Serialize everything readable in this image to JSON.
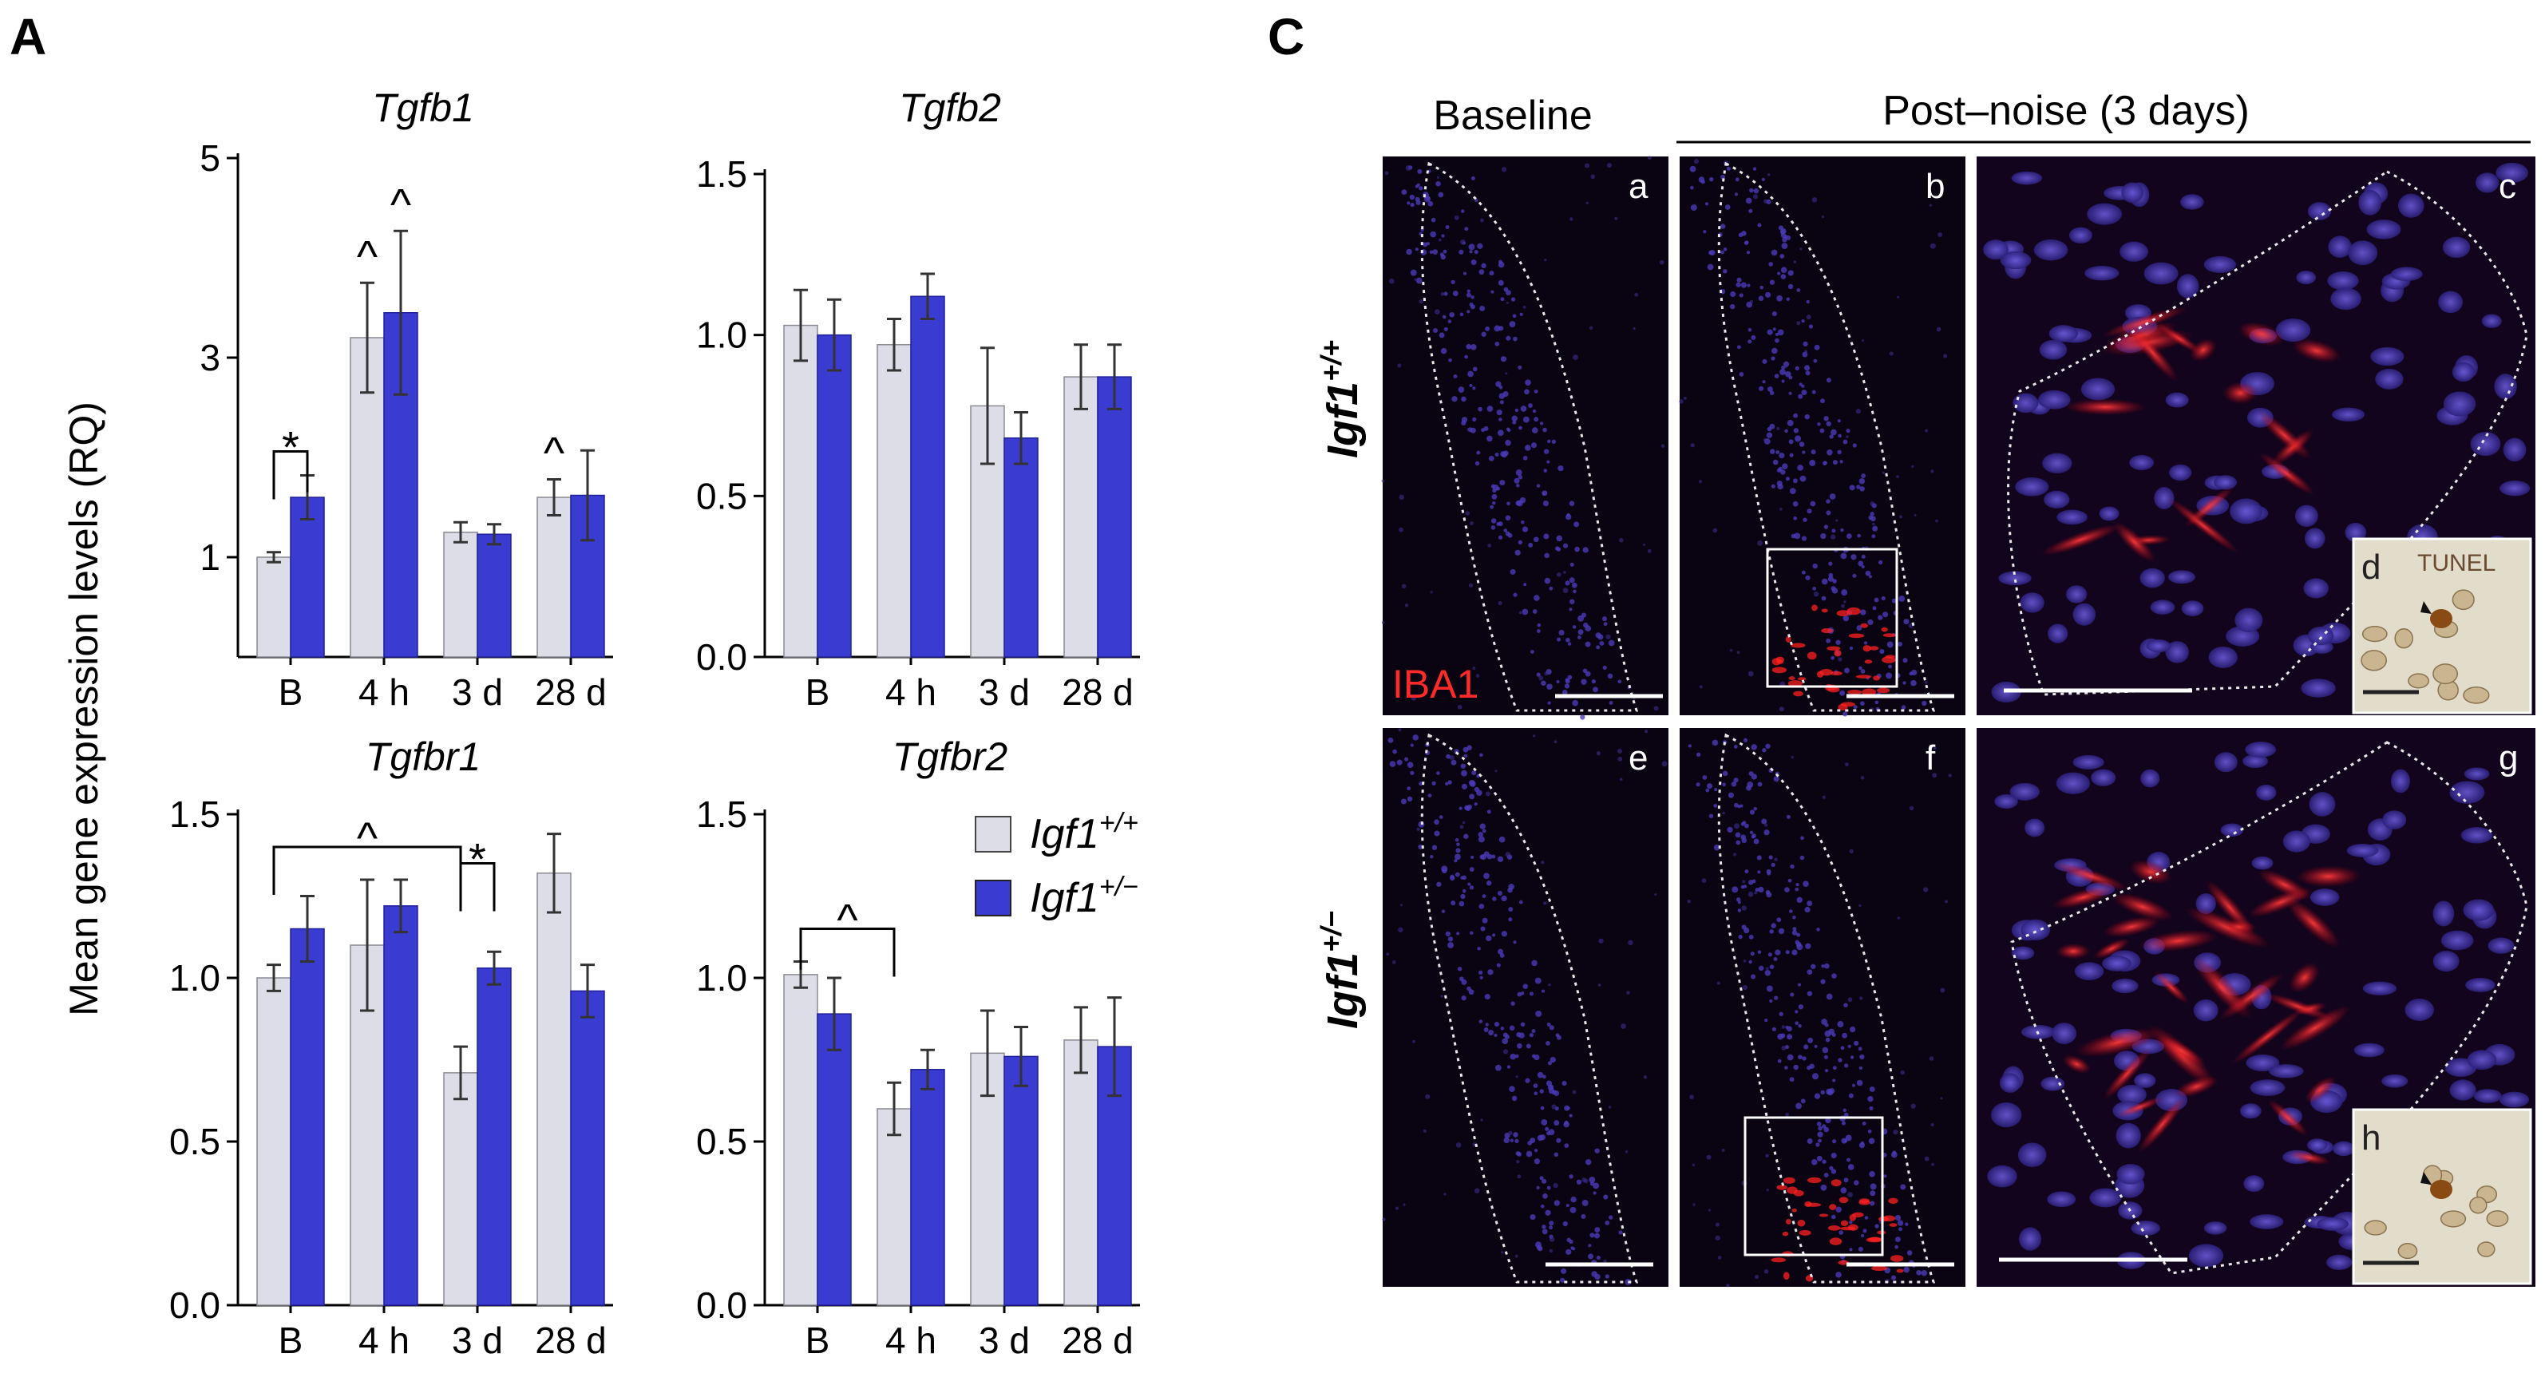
{
  "figure": {
    "panel_a_label": "A",
    "panel_c_label": "C",
    "y_axis_label": "Mean gene expression levels (RQ)"
  },
  "colors": {
    "wt": "#dcdde6",
    "het": "#3a3bd0",
    "error": "#333333",
    "micro_bg": "#0a0312",
    "tunel_bg": "#e2dccb"
  },
  "legend": {
    "items": [
      {
        "label": "Igf1",
        "sup": "+/+",
        "color_key": "wt"
      },
      {
        "label": "Igf1",
        "sup": "+/−",
        "color_key": "het"
      }
    ]
  },
  "chart_data": [
    {
      "type": "bar",
      "title": "Tgfb1",
      "categories": [
        "B",
        "4 h",
        "3 d",
        "28 d"
      ],
      "yticks": [
        "5",
        "3",
        "1"
      ],
      "ytick_values": [
        5,
        3,
        1
      ],
      "ylim": [
        0,
        5
      ],
      "series": [
        {
          "name": "Igf1+/+",
          "values": [
            1.0,
            3.2,
            1.25,
            1.6
          ],
          "errors": [
            0.05,
            0.55,
            0.1,
            0.18
          ]
        },
        {
          "name": "Igf1+/−",
          "values": [
            1.6,
            3.45,
            1.23,
            1.62
          ],
          "errors": [
            0.22,
            0.82,
            0.1,
            0.45
          ]
        }
      ],
      "markers": [
        {
          "text": "*",
          "kind": "bracket",
          "from": [
            0,
            0
          ],
          "to": [
            0,
            1
          ]
        },
        {
          "text": "^",
          "kind": "above",
          "cat": 1,
          "series": 0
        },
        {
          "text": "^",
          "kind": "above",
          "cat": 1,
          "series": 1
        },
        {
          "text": "^",
          "kind": "above",
          "cat": 3,
          "series": 0
        }
      ]
    },
    {
      "type": "bar",
      "title": "Tgfb2",
      "categories": [
        "B",
        "4 h",
        "3 d",
        "28 d"
      ],
      "yticks": [
        "1.5",
        "1.0",
        "0.5",
        "0.0"
      ],
      "ytick_values": [
        1.5,
        1.0,
        0.5,
        0.0
      ],
      "ylim": [
        0,
        1.5
      ],
      "series": [
        {
          "name": "Igf1+/+",
          "values": [
            1.03,
            0.97,
            0.78,
            0.87
          ],
          "errors": [
            0.11,
            0.08,
            0.18,
            0.1
          ]
        },
        {
          "name": "Igf1+/−",
          "values": [
            1.0,
            1.12,
            0.68,
            0.87
          ],
          "errors": [
            0.11,
            0.07,
            0.08,
            0.1
          ]
        }
      ],
      "markers": []
    },
    {
      "type": "bar",
      "title": "Tgfbr1",
      "categories": [
        "B",
        "4 h",
        "3 d",
        "28 d"
      ],
      "yticks": [
        "1.5",
        "1.0",
        "0.5",
        "0.0"
      ],
      "ytick_values": [
        1.5,
        1.0,
        0.5,
        0.0
      ],
      "ylim": [
        0,
        1.5
      ],
      "series": [
        {
          "name": "Igf1+/+",
          "values": [
            1.0,
            1.1,
            0.71,
            1.32
          ],
          "errors": [
            0.04,
            0.2,
            0.08,
            0.12
          ]
        },
        {
          "name": "Igf1+/−",
          "values": [
            1.15,
            1.22,
            1.03,
            0.96
          ],
          "errors": [
            0.1,
            0.08,
            0.05,
            0.08
          ]
        }
      ],
      "markers": [
        {
          "text": "^",
          "kind": "bracket",
          "from": [
            0,
            0
          ],
          "to": [
            2,
            0
          ],
          "y": 1.4
        },
        {
          "text": "*",
          "kind": "bracket",
          "from": [
            2,
            0
          ],
          "to": [
            2,
            1
          ],
          "y": 1.35
        }
      ]
    },
    {
      "type": "bar",
      "title": "Tgfbr2",
      "categories": [
        "B",
        "4 h",
        "3 d",
        "28 d"
      ],
      "yticks": [
        "1.5",
        "1.0",
        "0.5",
        "0.0"
      ],
      "ytick_values": [
        1.5,
        1.0,
        0.5,
        0.0
      ],
      "ylim": [
        0,
        1.5
      ],
      "series": [
        {
          "name": "Igf1+/+",
          "values": [
            1.01,
            0.6,
            0.77,
            0.81
          ],
          "errors": [
            0.04,
            0.08,
            0.13,
            0.1
          ]
        },
        {
          "name": "Igf1+/−",
          "values": [
            0.89,
            0.72,
            0.76,
            0.79
          ],
          "errors": [
            0.11,
            0.06,
            0.09,
            0.15
          ]
        }
      ],
      "markers": [
        {
          "text": "^",
          "kind": "bracket",
          "from": [
            0,
            0
          ],
          "to": [
            1,
            0
          ],
          "y": 1.15
        }
      ]
    }
  ],
  "micrographs": {
    "header_baseline": "Baseline",
    "header_post": "Post–noise (3 days)",
    "row_labels": [
      {
        "label": "Igf1",
        "sup": "+/+"
      },
      {
        "label": "Igf1",
        "sup": "+/−"
      }
    ],
    "stain_label": "IBA1",
    "tunel_label": "TUNEL",
    "panels": [
      "a",
      "b",
      "c",
      "d",
      "e",
      "f",
      "g",
      "h"
    ]
  }
}
